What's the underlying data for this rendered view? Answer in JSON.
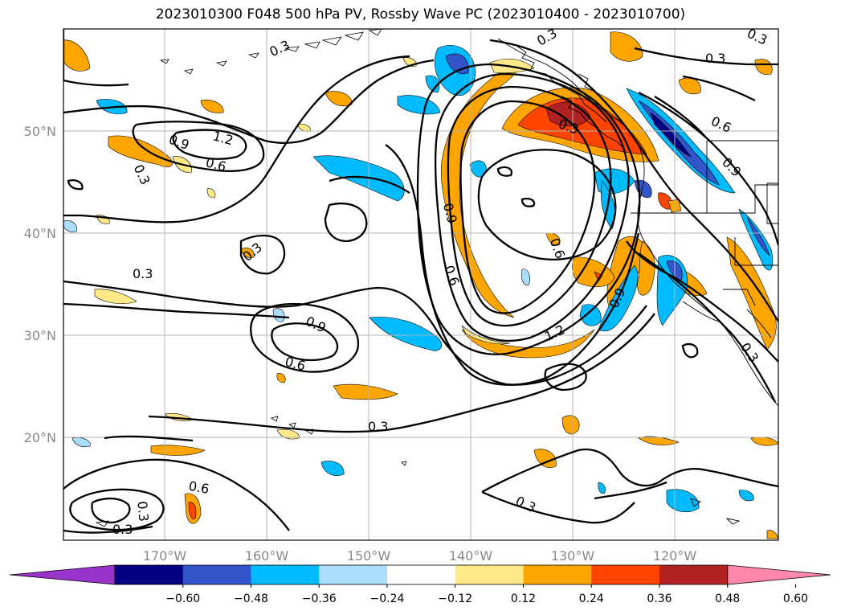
{
  "title": "2023010300 F048 500 hPa PV, Rossby Wave PC (2023010400 - 2023010700)",
  "lon_labels": [
    "170°W",
    "160°W",
    "150°W",
    "140°W",
    "130°W",
    "120°W"
  ],
  "lat_labels": [
    "50°N",
    "40°N",
    "30°N",
    "20°N"
  ],
  "colorbar": {
    "ticks": [
      "−0.60",
      "−0.48",
      "−0.36",
      "−0.24",
      "−0.12",
      "0.12",
      "0.24",
      "0.36",
      "0.48",
      "0.60"
    ],
    "colors": [
      "#9933cc",
      "#000080",
      "#3355cc",
      "#00bbff",
      "#aaddff",
      "#ffffff",
      "#ffe888",
      "#ffa500",
      "#ff4400",
      "#b22222",
      "#ff88aa"
    ]
  },
  "contour_labels": [
    {
      "id": "c1",
      "text": "0.3"
    },
    {
      "id": "c2",
      "text": "1.2"
    },
    {
      "id": "c3",
      "text": "0.9"
    },
    {
      "id": "c4",
      "text": "0.6"
    },
    {
      "id": "c5",
      "text": "0.3"
    },
    {
      "id": "c6",
      "text": "0.3"
    },
    {
      "id": "c7",
      "text": "0.3"
    },
    {
      "id": "c8",
      "text": "0.9"
    },
    {
      "id": "c9",
      "text": "0.6"
    },
    {
      "id": "c10",
      "text": "0.9"
    },
    {
      "id": "c11",
      "text": "0.6"
    },
    {
      "id": "c12",
      "text": "1.2"
    },
    {
      "id": "c13",
      "text": "0.3"
    },
    {
      "id": "c14",
      "text": "0.6"
    },
    {
      "id": "c15",
      "text": "0.6"
    },
    {
      "id": "c16",
      "text": "0.3"
    },
    {
      "id": "c17",
      "text": "0.3"
    },
    {
      "id": "c18",
      "text": "0.3"
    },
    {
      "id": "c19",
      "text": "0.9"
    },
    {
      "id": "c20",
      "text": "0.6"
    },
    {
      "id": "c21",
      "text": "0.3"
    },
    {
      "id": "c22",
      "text": "0.3"
    },
    {
      "id": "c23",
      "text": "0.9"
    },
    {
      "id": "c24",
      "text": "0.3"
    },
    {
      "id": "c25",
      "text": "0.3"
    },
    {
      "id": "c26",
      "text": "0.3"
    }
  ]
}
